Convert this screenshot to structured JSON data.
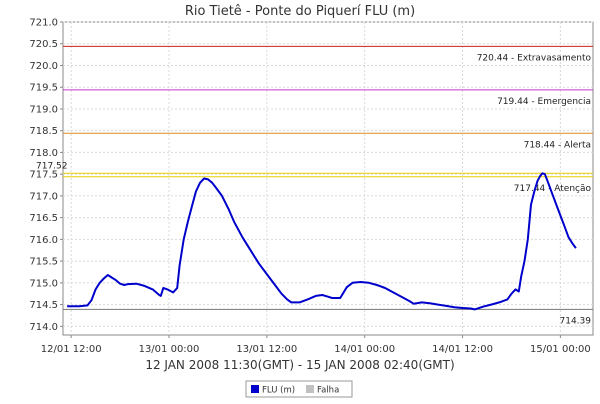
{
  "chart_data": {
    "type": "line",
    "title": "Rio Tietê - Ponte do Piquerí FLU (m)",
    "xlabel": "12 JAN 2008 11:30(GMT) - 15 JAN 2008 02:40(GMT)",
    "ylabel": "",
    "ylim": [
      713.8,
      721.0
    ],
    "yticks": [
      "714.0",
      "714.5",
      "715.0",
      "715.5",
      "716.0",
      "716.5",
      "717.0",
      "717.5",
      "718.0",
      "718.5",
      "719.0",
      "719.5",
      "720.0",
      "720.5",
      "721.0"
    ],
    "xlim_hours": [
      -1.0,
      64.0
    ],
    "xticks": [
      {
        "label": "12/01 12:00",
        "hour": 0
      },
      {
        "label": "13/01 00:00",
        "hour": 12
      },
      {
        "label": "13/01 12:00",
        "hour": 24
      },
      {
        "label": "14/01 00:00",
        "hour": 36
      },
      {
        "label": "14/01 12:00",
        "hour": 48
      },
      {
        "label": "15/01 00:00",
        "hour": 60
      }
    ],
    "grid": true,
    "series": [
      {
        "name": "FLU (m)",
        "color": "#0000cc",
        "points": [
          [
            -0.5,
            714.46
          ],
          [
            1.0,
            714.46
          ],
          [
            2.0,
            714.48
          ],
          [
            2.5,
            714.6
          ],
          [
            3.0,
            714.85
          ],
          [
            3.5,
            715.0
          ],
          [
            4.0,
            715.1
          ],
          [
            4.5,
            715.18
          ],
          [
            5.0,
            715.12
          ],
          [
            5.5,
            715.06
          ],
          [
            6.0,
            714.98
          ],
          [
            6.5,
            714.95
          ],
          [
            7.0,
            714.97
          ],
          [
            8.0,
            714.98
          ],
          [
            9.0,
            714.93
          ],
          [
            10.0,
            714.85
          ],
          [
            10.8,
            714.72
          ],
          [
            11.0,
            714.7
          ],
          [
            11.3,
            714.88
          ],
          [
            11.8,
            714.85
          ],
          [
            12.5,
            714.78
          ],
          [
            13.0,
            714.88
          ],
          [
            13.3,
            715.4
          ],
          [
            13.8,
            716.0
          ],
          [
            14.3,
            716.4
          ],
          [
            14.8,
            716.75
          ],
          [
            15.3,
            717.1
          ],
          [
            15.8,
            717.3
          ],
          [
            16.3,
            717.4
          ],
          [
            16.8,
            717.38
          ],
          [
            17.3,
            717.3
          ],
          [
            17.8,
            717.18
          ],
          [
            18.5,
            717.0
          ],
          [
            19.3,
            716.7
          ],
          [
            20.0,
            716.4
          ],
          [
            21.0,
            716.05
          ],
          [
            22.0,
            715.75
          ],
          [
            23.0,
            715.45
          ],
          [
            24.0,
            715.2
          ],
          [
            25.0,
            714.95
          ],
          [
            25.8,
            714.75
          ],
          [
            26.5,
            714.62
          ],
          [
            27.0,
            714.55
          ],
          [
            28.0,
            714.55
          ],
          [
            29.0,
            714.62
          ],
          [
            30.0,
            714.7
          ],
          [
            30.8,
            714.72
          ],
          [
            31.5,
            714.68
          ],
          [
            32.0,
            714.65
          ],
          [
            33.0,
            714.65
          ],
          [
            33.8,
            714.9
          ],
          [
            34.5,
            715.0
          ],
          [
            35.5,
            715.02
          ],
          [
            36.5,
            715.0
          ],
          [
            37.5,
            714.95
          ],
          [
            38.5,
            714.88
          ],
          [
            39.5,
            714.78
          ],
          [
            40.5,
            714.68
          ],
          [
            41.5,
            714.58
          ],
          [
            42.0,
            714.52
          ],
          [
            43.0,
            714.55
          ],
          [
            44.0,
            714.53
          ],
          [
            45.0,
            714.5
          ],
          [
            46.0,
            714.47
          ],
          [
            47.0,
            714.44
          ],
          [
            48.0,
            714.42
          ],
          [
            49.0,
            714.41
          ],
          [
            49.5,
            714.39
          ],
          [
            50.5,
            714.45
          ],
          [
            51.5,
            714.5
          ],
          [
            52.5,
            714.55
          ],
          [
            53.5,
            714.62
          ],
          [
            54.0,
            714.75
          ],
          [
            54.5,
            714.85
          ],
          [
            54.9,
            714.8
          ],
          [
            55.2,
            715.15
          ],
          [
            55.6,
            715.5
          ],
          [
            56.0,
            716.0
          ],
          [
            56.4,
            716.8
          ],
          [
            56.8,
            717.1
          ],
          [
            57.2,
            717.35
          ],
          [
            57.5,
            717.45
          ],
          [
            57.8,
            717.52
          ],
          [
            58.1,
            717.5
          ],
          [
            58.5,
            717.3
          ],
          [
            59.0,
            717.05
          ],
          [
            59.5,
            716.8
          ],
          [
            60.0,
            716.55
          ],
          [
            60.5,
            716.3
          ],
          [
            61.0,
            716.05
          ],
          [
            61.5,
            715.9
          ],
          [
            61.9,
            715.8
          ]
        ]
      },
      {
        "name": "Falha",
        "color": "#c0c0c0",
        "points": []
      }
    ],
    "thresholds": [
      {
        "value": 720.44,
        "label": "720.44 - Extravasamento",
        "color": "#cc2222"
      },
      {
        "value": 719.44,
        "label": "719.44 - Emergencia",
        "color": "#cc33cc"
      },
      {
        "value": 718.44,
        "label": "718.44 - Alerta",
        "color": "#e08a20"
      },
      {
        "value": 717.44,
        "label": "717.44 - Atenção",
        "color": "#e6d000"
      },
      {
        "value": 714.39,
        "label": "714.39",
        "color": "#777777"
      }
    ],
    "max_marker": {
      "value": 717.52,
      "label": "717.52",
      "color": "#e6d000"
    },
    "legend": {
      "position": "bottom",
      "entries": [
        "FLU (m)",
        "Falha"
      ]
    }
  }
}
